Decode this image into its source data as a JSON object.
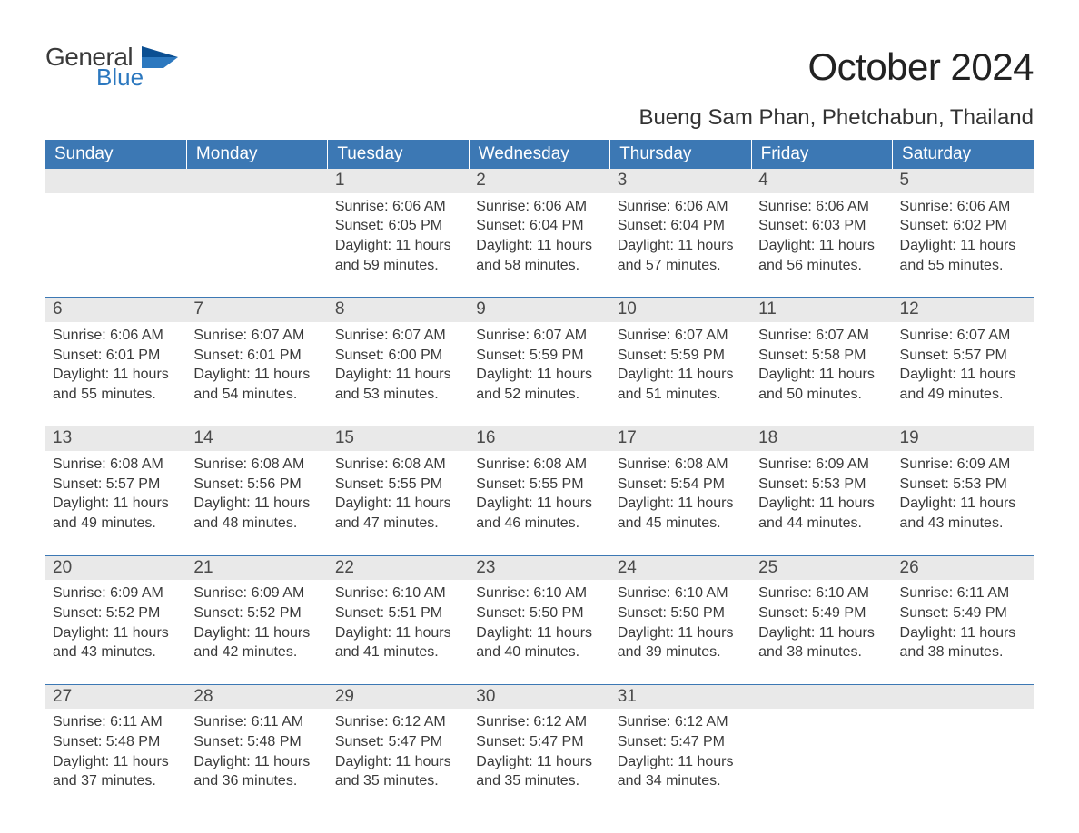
{
  "brand": {
    "word1": "General",
    "word2": "Blue",
    "flag_color": "#2c78bf",
    "text_color": "#3a3a3a"
  },
  "title": "October 2024",
  "location": "Bueng Sam Phan, Phetchabun, Thailand",
  "colors": {
    "header_bg": "#3c78b4",
    "header_fg": "#ffffff",
    "daynum_bg": "#e9e9e9",
    "row_border": "#3c78b4",
    "body_text": "#3a3a3a",
    "page_bg": "#ffffff"
  },
  "typography": {
    "title_fontsize": 42,
    "location_fontsize": 24,
    "header_fontsize": 19,
    "daynum_fontsize": 19,
    "body_fontsize": 16,
    "font_family": "Arial"
  },
  "layout": {
    "columns": 7,
    "rows": 5,
    "aspect_ratio": "1188x918"
  },
  "weekdays": [
    "Sunday",
    "Monday",
    "Tuesday",
    "Wednesday",
    "Thursday",
    "Friday",
    "Saturday"
  ],
  "weeks": [
    [
      {
        "empty": true
      },
      {
        "empty": true
      },
      {
        "num": "1",
        "sunrise": "Sunrise: 6:06 AM",
        "sunset": "Sunset: 6:05 PM",
        "daylight1": "Daylight: 11 hours",
        "daylight2": "and 59 minutes."
      },
      {
        "num": "2",
        "sunrise": "Sunrise: 6:06 AM",
        "sunset": "Sunset: 6:04 PM",
        "daylight1": "Daylight: 11 hours",
        "daylight2": "and 58 minutes."
      },
      {
        "num": "3",
        "sunrise": "Sunrise: 6:06 AM",
        "sunset": "Sunset: 6:04 PM",
        "daylight1": "Daylight: 11 hours",
        "daylight2": "and 57 minutes."
      },
      {
        "num": "4",
        "sunrise": "Sunrise: 6:06 AM",
        "sunset": "Sunset: 6:03 PM",
        "daylight1": "Daylight: 11 hours",
        "daylight2": "and 56 minutes."
      },
      {
        "num": "5",
        "sunrise": "Sunrise: 6:06 AM",
        "sunset": "Sunset: 6:02 PM",
        "daylight1": "Daylight: 11 hours",
        "daylight2": "and 55 minutes."
      }
    ],
    [
      {
        "num": "6",
        "sunrise": "Sunrise: 6:06 AM",
        "sunset": "Sunset: 6:01 PM",
        "daylight1": "Daylight: 11 hours",
        "daylight2": "and 55 minutes."
      },
      {
        "num": "7",
        "sunrise": "Sunrise: 6:07 AM",
        "sunset": "Sunset: 6:01 PM",
        "daylight1": "Daylight: 11 hours",
        "daylight2": "and 54 minutes."
      },
      {
        "num": "8",
        "sunrise": "Sunrise: 6:07 AM",
        "sunset": "Sunset: 6:00 PM",
        "daylight1": "Daylight: 11 hours",
        "daylight2": "and 53 minutes."
      },
      {
        "num": "9",
        "sunrise": "Sunrise: 6:07 AM",
        "sunset": "Sunset: 5:59 PM",
        "daylight1": "Daylight: 11 hours",
        "daylight2": "and 52 minutes."
      },
      {
        "num": "10",
        "sunrise": "Sunrise: 6:07 AM",
        "sunset": "Sunset: 5:59 PM",
        "daylight1": "Daylight: 11 hours",
        "daylight2": "and 51 minutes."
      },
      {
        "num": "11",
        "sunrise": "Sunrise: 6:07 AM",
        "sunset": "Sunset: 5:58 PM",
        "daylight1": "Daylight: 11 hours",
        "daylight2": "and 50 minutes."
      },
      {
        "num": "12",
        "sunrise": "Sunrise: 6:07 AM",
        "sunset": "Sunset: 5:57 PM",
        "daylight1": "Daylight: 11 hours",
        "daylight2": "and 49 minutes."
      }
    ],
    [
      {
        "num": "13",
        "sunrise": "Sunrise: 6:08 AM",
        "sunset": "Sunset: 5:57 PM",
        "daylight1": "Daylight: 11 hours",
        "daylight2": "and 49 minutes."
      },
      {
        "num": "14",
        "sunrise": "Sunrise: 6:08 AM",
        "sunset": "Sunset: 5:56 PM",
        "daylight1": "Daylight: 11 hours",
        "daylight2": "and 48 minutes."
      },
      {
        "num": "15",
        "sunrise": "Sunrise: 6:08 AM",
        "sunset": "Sunset: 5:55 PM",
        "daylight1": "Daylight: 11 hours",
        "daylight2": "and 47 minutes."
      },
      {
        "num": "16",
        "sunrise": "Sunrise: 6:08 AM",
        "sunset": "Sunset: 5:55 PM",
        "daylight1": "Daylight: 11 hours",
        "daylight2": "and 46 minutes."
      },
      {
        "num": "17",
        "sunrise": "Sunrise: 6:08 AM",
        "sunset": "Sunset: 5:54 PM",
        "daylight1": "Daylight: 11 hours",
        "daylight2": "and 45 minutes."
      },
      {
        "num": "18",
        "sunrise": "Sunrise: 6:09 AM",
        "sunset": "Sunset: 5:53 PM",
        "daylight1": "Daylight: 11 hours",
        "daylight2": "and 44 minutes."
      },
      {
        "num": "19",
        "sunrise": "Sunrise: 6:09 AM",
        "sunset": "Sunset: 5:53 PM",
        "daylight1": "Daylight: 11 hours",
        "daylight2": "and 43 minutes."
      }
    ],
    [
      {
        "num": "20",
        "sunrise": "Sunrise: 6:09 AM",
        "sunset": "Sunset: 5:52 PM",
        "daylight1": "Daylight: 11 hours",
        "daylight2": "and 43 minutes."
      },
      {
        "num": "21",
        "sunrise": "Sunrise: 6:09 AM",
        "sunset": "Sunset: 5:52 PM",
        "daylight1": "Daylight: 11 hours",
        "daylight2": "and 42 minutes."
      },
      {
        "num": "22",
        "sunrise": "Sunrise: 6:10 AM",
        "sunset": "Sunset: 5:51 PM",
        "daylight1": "Daylight: 11 hours",
        "daylight2": "and 41 minutes."
      },
      {
        "num": "23",
        "sunrise": "Sunrise: 6:10 AM",
        "sunset": "Sunset: 5:50 PM",
        "daylight1": "Daylight: 11 hours",
        "daylight2": "and 40 minutes."
      },
      {
        "num": "24",
        "sunrise": "Sunrise: 6:10 AM",
        "sunset": "Sunset: 5:50 PM",
        "daylight1": "Daylight: 11 hours",
        "daylight2": "and 39 minutes."
      },
      {
        "num": "25",
        "sunrise": "Sunrise: 6:10 AM",
        "sunset": "Sunset: 5:49 PM",
        "daylight1": "Daylight: 11 hours",
        "daylight2": "and 38 minutes."
      },
      {
        "num": "26",
        "sunrise": "Sunrise: 6:11 AM",
        "sunset": "Sunset: 5:49 PM",
        "daylight1": "Daylight: 11 hours",
        "daylight2": "and 38 minutes."
      }
    ],
    [
      {
        "num": "27",
        "sunrise": "Sunrise: 6:11 AM",
        "sunset": "Sunset: 5:48 PM",
        "daylight1": "Daylight: 11 hours",
        "daylight2": "and 37 minutes."
      },
      {
        "num": "28",
        "sunrise": "Sunrise: 6:11 AM",
        "sunset": "Sunset: 5:48 PM",
        "daylight1": "Daylight: 11 hours",
        "daylight2": "and 36 minutes."
      },
      {
        "num": "29",
        "sunrise": "Sunrise: 6:12 AM",
        "sunset": "Sunset: 5:47 PM",
        "daylight1": "Daylight: 11 hours",
        "daylight2": "and 35 minutes."
      },
      {
        "num": "30",
        "sunrise": "Sunrise: 6:12 AM",
        "sunset": "Sunset: 5:47 PM",
        "daylight1": "Daylight: 11 hours",
        "daylight2": "and 35 minutes."
      },
      {
        "num": "31",
        "sunrise": "Sunrise: 6:12 AM",
        "sunset": "Sunset: 5:47 PM",
        "daylight1": "Daylight: 11 hours",
        "daylight2": "and 34 minutes."
      },
      {
        "empty": true
      },
      {
        "empty": true
      }
    ]
  ]
}
